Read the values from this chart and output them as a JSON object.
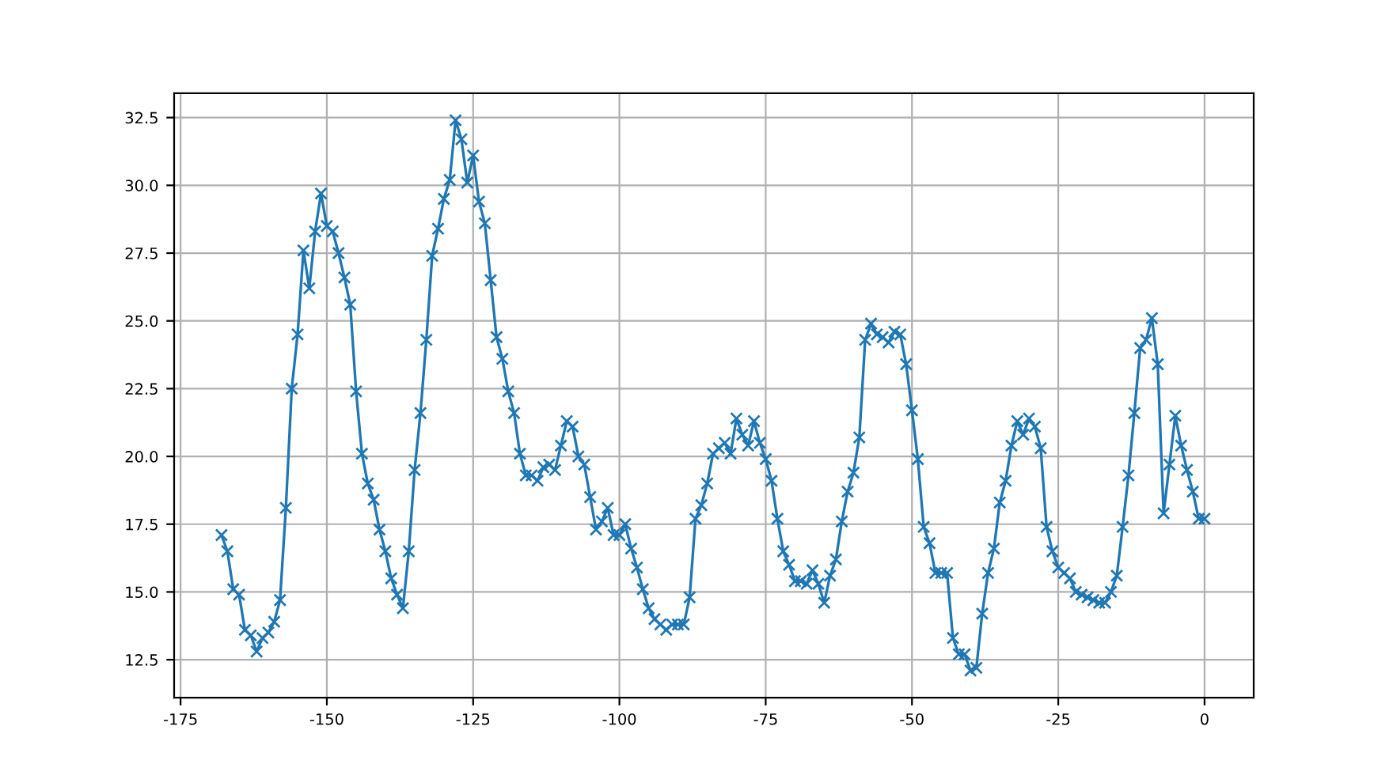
{
  "chart_data": {
    "type": "line",
    "x": [
      -168,
      -167,
      -166,
      -165,
      -164,
      -163,
      -162,
      -161,
      -160,
      -159,
      -158,
      -157,
      -156,
      -155,
      -154,
      -153,
      -152,
      -151,
      -150,
      -149,
      -148,
      -147,
      -146,
      -145,
      -144,
      -143,
      -142,
      -141,
      -140,
      -139,
      -138,
      -137,
      -136,
      -135,
      -134,
      -133,
      -132,
      -131,
      -130,
      -129,
      -128,
      -127,
      -126,
      -125,
      -124,
      -123,
      -122,
      -121,
      -120,
      -119,
      -118,
      -117,
      -116,
      -115,
      -114,
      -113,
      -112,
      -111,
      -110,
      -109,
      -108,
      -107,
      -106,
      -105,
      -104,
      -103,
      -102,
      -101,
      -100,
      -99,
      -98,
      -97,
      -96,
      -95,
      -94,
      -93,
      -92,
      -91,
      -90,
      -89,
      -88,
      -87,
      -86,
      -85,
      -84,
      -83,
      -82,
      -81,
      -80,
      -79,
      -78,
      -77,
      -76,
      -75,
      -74,
      -73,
      -72,
      -71,
      -70,
      -69,
      -68,
      -67,
      -66,
      -65,
      -64,
      -63,
      -62,
      -61,
      -60,
      -59,
      -58,
      -57,
      -56,
      -55,
      -54,
      -53,
      -52,
      -51,
      -50,
      -49,
      -48,
      -47,
      -46,
      -45,
      -44,
      -43,
      -42,
      -41,
      -40,
      -39,
      -38,
      -37,
      -36,
      -35,
      -34,
      -33,
      -32,
      -31,
      -30,
      -29,
      -28,
      -27,
      -26,
      -25,
      -24,
      -23,
      -22,
      -21,
      -20,
      -19,
      -18,
      -17,
      -16,
      -15,
      -14,
      -13,
      -12,
      -11,
      -10,
      -9,
      -8,
      -7,
      -6,
      -5,
      -4,
      -3,
      -2,
      -1,
      0
    ],
    "series": [
      {
        "color": "#1f77b4",
        "values": [
          17.1,
          16.5,
          15.1,
          14.9,
          13.6,
          13.4,
          12.8,
          13.3,
          13.5,
          13.9,
          14.7,
          18.1,
          22.5,
          24.5,
          27.6,
          26.2,
          28.3,
          29.7,
          28.5,
          28.3,
          27.5,
          26.6,
          25.6,
          22.4,
          20.1,
          19.0,
          18.4,
          17.3,
          16.5,
          15.5,
          14.9,
          14.4,
          16.5,
          19.5,
          21.6,
          24.3,
          27.4,
          28.4,
          29.5,
          30.2,
          32.4,
          31.7,
          30.1,
          31.1,
          29.4,
          28.6,
          26.5,
          24.4,
          23.6,
          22.4,
          21.6,
          20.1,
          19.3,
          19.3,
          19.1,
          19.6,
          19.7,
          19.5,
          20.4,
          21.3,
          21.1,
          20.0,
          19.7,
          18.5,
          17.3,
          17.6,
          18.1,
          17.1,
          17.1,
          17.5,
          16.6,
          15.9,
          15.1,
          14.4,
          14.0,
          13.8,
          13.6,
          13.8,
          13.8,
          13.8,
          14.8,
          17.7,
          18.2,
          19.0,
          20.1,
          20.3,
          20.5,
          20.1,
          21.4,
          20.8,
          20.4,
          21.3,
          20.5,
          19.9,
          19.1,
          17.7,
          16.5,
          16.0,
          15.4,
          15.4,
          15.3,
          15.8,
          15.3,
          14.6,
          15.6,
          16.2,
          17.6,
          18.7,
          19.4,
          20.7,
          24.3,
          24.9,
          24.5,
          24.4,
          24.2,
          24.6,
          24.5,
          23.4,
          21.7,
          19.9,
          17.4,
          16.8,
          15.7,
          15.7,
          15.7,
          13.3,
          12.7,
          12.7,
          12.1,
          12.2,
          14.2,
          15.7,
          16.6,
          18.3,
          19.1,
          20.4,
          21.3,
          20.8,
          21.4,
          21.1,
          20.3,
          17.4,
          16.5,
          15.9,
          15.7,
          15.5,
          15.0,
          14.9,
          14.8,
          14.7,
          14.6,
          14.6,
          15.0,
          15.6,
          17.4,
          19.3,
          21.6,
          24.0,
          24.3,
          25.1,
          23.4,
          17.9,
          19.7,
          21.5,
          20.4,
          19.5,
          18.7,
          17.7,
          17.7
        ]
      }
    ],
    "xlim": [
      -176.1,
      8.4
    ],
    "ylim": [
      11.1,
      33.4
    ],
    "xticks": [
      -175,
      -150,
      -125,
      -100,
      -75,
      -50,
      -25,
      0
    ],
    "yticks": [
      12.5,
      {
        "value": 15,
        "label": "15.0"
      },
      17.5,
      {
        "value": 20,
        "label": "20.0"
      },
      22.5,
      {
        "value": 25,
        "label": "25.0"
      },
      27.5,
      {
        "value": 30,
        "label": "30.0"
      },
      32.5
    ],
    "grid": true,
    "marker": "cross",
    "line_style": "solid",
    "legend": false
  }
}
